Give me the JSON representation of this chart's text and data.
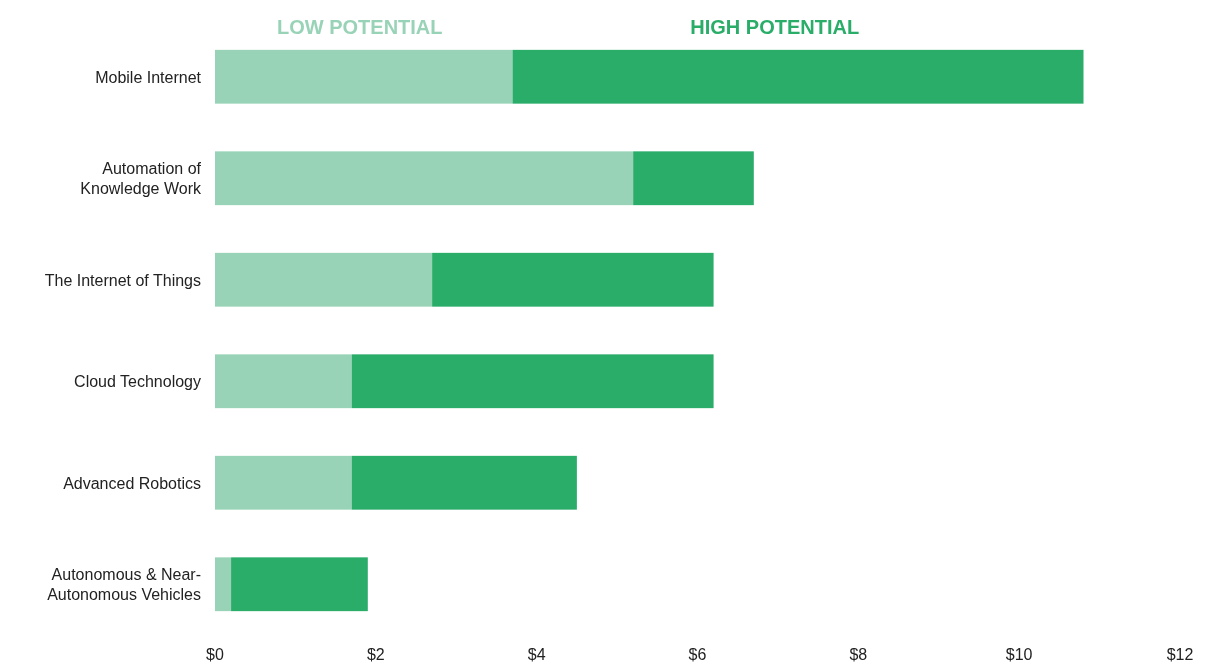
{
  "chart_data": {
    "type": "bar",
    "orientation": "horizontal",
    "stacked": true,
    "categories": [
      "Mobile Internet",
      "Automation of Knowledge Work",
      "The Internet of Things",
      "Cloud Technology",
      "Advanced Robotics",
      "Autonomous & Near-Autonomous Vehicles"
    ],
    "series": [
      {
        "name": "LOW POTENTIAL",
        "color": "#98d3b7",
        "values": [
          3.7,
          5.2,
          2.7,
          1.7,
          1.7,
          0.2
        ]
      },
      {
        "name": "HIGH POTENTIAL",
        "color": "#29ad69",
        "values": [
          7.1,
          1.5,
          3.5,
          4.5,
          2.8,
          1.7
        ]
      }
    ],
    "xlim": [
      0,
      12
    ],
    "xticks": [
      {
        "value": 0,
        "label": "$0"
      },
      {
        "value": 2,
        "label": "$2"
      },
      {
        "value": 4,
        "label": "$4"
      },
      {
        "value": 6,
        "label": "$6"
      },
      {
        "value": 8,
        "label": "$8"
      },
      {
        "value": 10,
        "label": "$10"
      },
      {
        "value": 12,
        "label": "$12"
      }
    ],
    "legend": "top",
    "grid": false
  }
}
